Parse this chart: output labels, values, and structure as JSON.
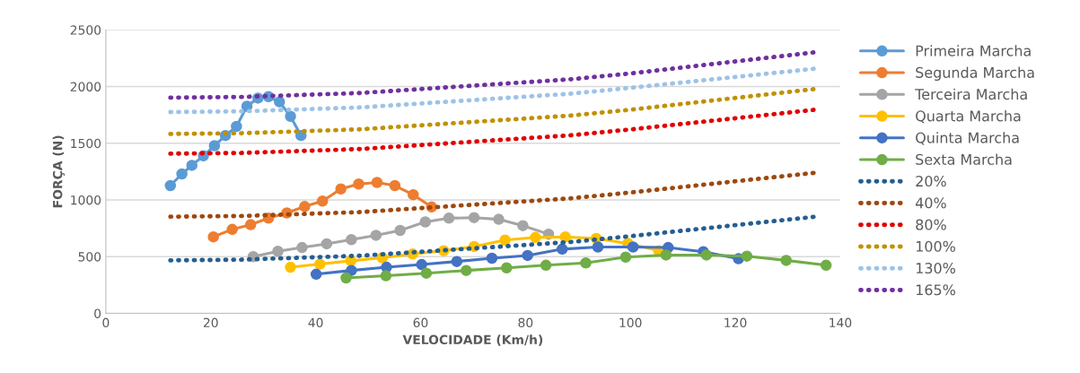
{
  "chart_data": {
    "type": "line",
    "xlabel": "VELOCIDADE (Km/h)",
    "ylabel": "FORÇA (N)",
    "xlim": [
      0,
      140
    ],
    "xticks": [
      0,
      20,
      40,
      60,
      80,
      100,
      120,
      140
    ],
    "ylim": [
      0,
      2500
    ],
    "yticks": [
      0,
      500,
      1000,
      1500,
      2000,
      2500
    ],
    "grid": "y",
    "legend": "right",
    "series": [
      {
        "name": "Primeira Marcha",
        "color": "#5b9bd5",
        "marker": "circle",
        "line_style": "solid",
        "x": [
          12.3,
          14.5,
          16.4,
          18.6,
          20.7,
          22.8,
          24.9,
          26.9,
          29.0,
          31.0,
          33.1,
          35.2,
          37.2
        ],
        "values": [
          1126,
          1229,
          1305,
          1389,
          1478,
          1568,
          1648,
          1826,
          1898,
          1911,
          1865,
          1737,
          1568
        ]
      },
      {
        "name": "Segunda Marcha",
        "color": "#ed7d31",
        "marker": "circle",
        "line_style": "solid",
        "x": [
          20.5,
          24.1,
          27.6,
          31.0,
          34.5,
          37.9,
          41.3,
          44.8,
          48.2,
          51.7,
          55.1,
          58.6,
          62.1
        ],
        "values": [
          674,
          740,
          782,
          839,
          885,
          942,
          990,
          1097,
          1140,
          1154,
          1126,
          1046,
          938
        ]
      },
      {
        "name": "Terceira Marcha",
        "color": "#a5a5a5",
        "marker": "circle",
        "line_style": "solid",
        "x": [
          28.1,
          32.8,
          37.4,
          42.1,
          46.8,
          51.5,
          56.1,
          60.9,
          65.4,
          70.2,
          74.9,
          79.5,
          84.4
        ],
        "values": [
          500,
          547,
          580,
          613,
          650,
          688,
          731,
          806,
          839,
          844,
          829,
          773,
          698
        ]
      },
      {
        "name": "Quarta Marcha",
        "color": "#ffc000",
        "marker": "circle",
        "line_style": "solid",
        "x": [
          35.2,
          40.8,
          46.7,
          52.7,
          58.5,
          64.4,
          70.2,
          76.1,
          81.9,
          87.6,
          93.5,
          99.5,
          105.4
        ],
        "values": [
          406,
          434,
          463,
          490,
          523,
          552,
          589,
          646,
          669,
          674,
          660,
          617,
          552
        ]
      },
      {
        "name": "Quinta Marcha",
        "color": "#4472c4",
        "marker": "circle",
        "line_style": "solid",
        "x": [
          40.1,
          46.8,
          53.5,
          60.2,
          66.9,
          73.6,
          80.4,
          87.0,
          93.8,
          100.5,
          107.2,
          113.9,
          120.6
        ],
        "values": [
          345,
          378,
          406,
          430,
          457,
          486,
          510,
          566,
          585,
          585,
          580,
          543,
          481
        ]
      },
      {
        "name": "Sexta Marcha",
        "color": "#70ad47",
        "marker": "circle",
        "line_style": "solid",
        "x": [
          45.8,
          53.4,
          61.1,
          68.7,
          76.4,
          83.9,
          91.5,
          99.1,
          106.8,
          114.5,
          122.2,
          129.7,
          137.3
        ],
        "values": [
          312,
          331,
          354,
          378,
          401,
          424,
          444,
          496,
          514,
          514,
          504,
          467,
          424
        ]
      },
      {
        "name": "20%",
        "color": "#255e91",
        "marker": "none",
        "line_style": "dotted",
        "x": [
          12.3,
          25.6,
          48.5,
          65.7,
          88.6,
          100.1,
          135.9
        ],
        "values": [
          467,
          473,
          508,
          560,
          629,
          681,
          855
        ]
      },
      {
        "name": "40%",
        "color": "#9e480e",
        "marker": "none",
        "line_style": "dotted",
        "x": [
          12.3,
          25.6,
          48.5,
          65.7,
          88.6,
          100.1,
          135.9
        ],
        "values": [
          852,
          858,
          893,
          945,
          1014,
          1066,
          1243
        ]
      },
      {
        "name": "80%",
        "color": "#e00000",
        "marker": "none",
        "line_style": "dotted",
        "x": [
          12.3,
          25.6,
          48.5,
          65.7,
          88.6,
          100.1,
          135.9
        ],
        "values": [
          1408,
          1414,
          1449,
          1501,
          1570,
          1622,
          1799
        ]
      },
      {
        "name": "100%",
        "color": "#c09100",
        "marker": "none",
        "line_style": "dotted",
        "x": [
          12.3,
          25.6,
          48.5,
          65.7,
          88.6,
          100.1,
          135.9
        ],
        "values": [
          1582,
          1588,
          1623,
          1675,
          1744,
          1796,
          1982
        ]
      },
      {
        "name": "130%",
        "color": "#9dc3e6",
        "marker": "none",
        "line_style": "dotted",
        "x": [
          12.3,
          25.6,
          48.5,
          65.7,
          88.6,
          100.1,
          135.9
        ],
        "values": [
          1775,
          1781,
          1816,
          1868,
          1937,
          1989,
          2161
        ]
      },
      {
        "name": "165%",
        "color": "#7030a0",
        "marker": "none",
        "line_style": "dotted",
        "x": [
          12.3,
          25.6,
          48.5,
          65.7,
          88.6,
          100.1,
          135.9
        ],
        "values": [
          1902,
          1908,
          1943,
          1995,
          2064,
          2116,
          2306
        ]
      }
    ]
  }
}
